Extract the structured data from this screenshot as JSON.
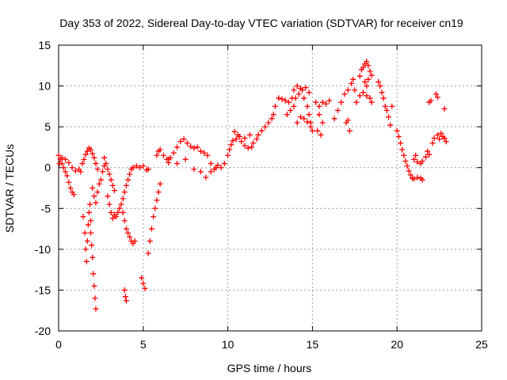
{
  "chart_data": {
    "type": "scatter",
    "title": "Day 353 of 2022, Sidereal Day-to-day VTEC variation (SDTVAR) for receiver cn19",
    "xlabel": "GPS time / hours",
    "ylabel": "SDTVAR / TECUs",
    "xlim": [
      0,
      25
    ],
    "ylim": [
      -20,
      15
    ],
    "xticks": [
      0,
      5,
      10,
      15,
      20,
      25
    ],
    "yticks": [
      -20,
      -15,
      -10,
      -5,
      0,
      5,
      10,
      15
    ],
    "grid": true,
    "marker": "+",
    "series": [
      {
        "name": "SDTVAR",
        "color": "#ff0000",
        "points": [
          [
            0.0,
            1.5
          ],
          [
            0.1,
            1.0
          ],
          [
            0.2,
            0.5
          ],
          [
            0.3,
            0.0
          ],
          [
            0.4,
            -0.5
          ],
          [
            0.5,
            -1.0
          ],
          [
            0.6,
            -1.8
          ],
          [
            0.7,
            -2.5
          ],
          [
            0.8,
            -3.0
          ],
          [
            0.9,
            -3.3
          ],
          [
            0.05,
            0.5
          ],
          [
            0.2,
            1.2
          ],
          [
            0.4,
            1.0
          ],
          [
            0.6,
            0.6
          ],
          [
            0.8,
            0.0
          ],
          [
            1.0,
            -0.4
          ],
          [
            1.2,
            -0.2
          ],
          [
            1.3,
            -0.5
          ],
          [
            1.4,
            0.5
          ],
          [
            1.5,
            1.0
          ],
          [
            1.6,
            1.6
          ],
          [
            1.7,
            2.0
          ],
          [
            1.8,
            2.4
          ],
          [
            1.9,
            2.2
          ],
          [
            2.0,
            1.7
          ],
          [
            2.1,
            1.2
          ],
          [
            2.2,
            0.5
          ],
          [
            2.3,
            -0.2
          ],
          [
            1.45,
            -6.0
          ],
          [
            1.55,
            -8.0
          ],
          [
            1.6,
            -10.0
          ],
          [
            1.65,
            -11.5
          ],
          [
            1.7,
            -9.0
          ],
          [
            1.75,
            -7.0
          ],
          [
            1.8,
            -5.5
          ],
          [
            1.85,
            -4.5
          ],
          [
            1.9,
            -6.5
          ],
          [
            1.9,
            -8.0
          ],
          [
            1.95,
            -9.5
          ],
          [
            2.0,
            -11.0
          ],
          [
            2.05,
            -13.0
          ],
          [
            2.1,
            -14.5
          ],
          [
            2.15,
            -16.0
          ],
          [
            2.2,
            -17.3
          ],
          [
            2.0,
            -2.5
          ],
          [
            2.1,
            -3.5
          ],
          [
            2.2,
            -4.3
          ],
          [
            2.3,
            -3.0
          ],
          [
            2.4,
            -2.0
          ],
          [
            2.5,
            -1.5
          ],
          [
            2.6,
            -0.5
          ],
          [
            2.7,
            0.2
          ],
          [
            2.7,
            1.2
          ],
          [
            2.8,
            0.5
          ],
          [
            2.9,
            -0.2
          ],
          [
            3.0,
            -0.8
          ],
          [
            3.1,
            -1.5
          ],
          [
            3.2,
            -2.2
          ],
          [
            3.3,
            -2.8
          ],
          [
            2.9,
            -3.5
          ],
          [
            3.0,
            -4.5
          ],
          [
            3.1,
            -5.5
          ],
          [
            3.2,
            -6.2
          ],
          [
            3.3,
            -5.8
          ],
          [
            3.4,
            -6.0
          ],
          [
            3.5,
            -5.5
          ],
          [
            3.6,
            -5.0
          ],
          [
            3.7,
            -4.5
          ],
          [
            3.8,
            -3.8
          ],
          [
            3.9,
            -3.0
          ],
          [
            4.0,
            -2.2
          ],
          [
            4.1,
            -1.5
          ],
          [
            4.2,
            -0.8
          ],
          [
            4.3,
            -0.2
          ],
          [
            4.4,
            0.0
          ],
          [
            3.8,
            -5.5
          ],
          [
            3.9,
            -6.5
          ],
          [
            4.0,
            -7.5
          ],
          [
            4.1,
            -8.0
          ],
          [
            4.2,
            -8.5
          ],
          [
            4.3,
            -9.0
          ],
          [
            4.4,
            -9.3
          ],
          [
            4.5,
            -9.0
          ],
          [
            3.9,
            -15.0
          ],
          [
            3.95,
            -15.8
          ],
          [
            4.0,
            -16.3
          ],
          [
            4.6,
            0.2
          ],
          [
            4.8,
            0.0
          ],
          [
            5.0,
            0.2
          ],
          [
            5.2,
            -0.3
          ],
          [
            5.3,
            -0.2
          ],
          [
            4.9,
            -13.5
          ],
          [
            5.0,
            -14.2
          ],
          [
            5.1,
            -14.8
          ],
          [
            5.3,
            -10.5
          ],
          [
            5.4,
            -9.0
          ],
          [
            5.5,
            -7.5
          ],
          [
            5.6,
            -6.0
          ],
          [
            5.7,
            -5.0
          ],
          [
            5.8,
            -4.0
          ],
          [
            5.9,
            -3.0
          ],
          [
            6.0,
            -2.0
          ],
          [
            5.8,
            1.5
          ],
          [
            5.9,
            2.0
          ],
          [
            6.0,
            2.2
          ],
          [
            6.2,
            1.5
          ],
          [
            6.4,
            1.0
          ],
          [
            6.5,
            0.6
          ],
          [
            6.5,
            1.0
          ],
          [
            6.6,
            1.2
          ],
          [
            6.8,
            1.8
          ],
          [
            7.0,
            2.5
          ],
          [
            7.2,
            3.2
          ],
          [
            7.4,
            3.5
          ],
          [
            7.6,
            3.0
          ],
          [
            7.8,
            2.6
          ],
          [
            8.0,
            2.4
          ],
          [
            8.2,
            2.5
          ],
          [
            8.4,
            2.0
          ],
          [
            8.6,
            1.8
          ],
          [
            8.8,
            1.5
          ],
          [
            9.0,
            0.5
          ],
          [
            9.2,
            -0.2
          ],
          [
            9.4,
            0.3
          ],
          [
            9.6,
            0.0
          ],
          [
            9.8,
            0.5
          ],
          [
            7.0,
            0.5
          ],
          [
            7.5,
            1.0
          ],
          [
            8.0,
            -0.2
          ],
          [
            8.4,
            -0.5
          ],
          [
            8.7,
            -1.2
          ],
          [
            9.0,
            -0.5
          ],
          [
            9.3,
            0.0
          ],
          [
            10.0,
            1.5
          ],
          [
            10.1,
            2.2
          ],
          [
            10.2,
            2.8
          ],
          [
            10.3,
            3.3
          ],
          [
            10.5,
            3.5
          ],
          [
            10.7,
            3.8
          ],
          [
            11.0,
            3.6
          ],
          [
            11.3,
            4.0
          ],
          [
            10.4,
            4.4
          ],
          [
            10.6,
            4.0
          ],
          [
            10.8,
            3.2
          ],
          [
            11.0,
            2.7
          ],
          [
            11.2,
            2.4
          ],
          [
            11.4,
            2.5
          ],
          [
            11.5,
            3.0
          ],
          [
            11.7,
            3.5
          ],
          [
            11.8,
            4.0
          ],
          [
            12.0,
            4.5
          ],
          [
            12.2,
            5.0
          ],
          [
            12.4,
            5.5
          ],
          [
            12.6,
            6.0
          ],
          [
            12.7,
            6.5
          ],
          [
            12.8,
            7.5
          ],
          [
            13.0,
            8.5
          ],
          [
            13.2,
            8.4
          ],
          [
            13.4,
            8.2
          ],
          [
            13.6,
            8.0
          ],
          [
            13.8,
            8.5
          ],
          [
            13.5,
            6.5
          ],
          [
            13.7,
            7.0
          ],
          [
            13.9,
            7.5
          ],
          [
            14.0,
            8.5
          ],
          [
            14.2,
            9.0
          ],
          [
            14.4,
            9.5
          ],
          [
            14.6,
            9.8
          ],
          [
            14.8,
            9.2
          ],
          [
            13.9,
            9.5
          ],
          [
            14.1,
            10.0
          ],
          [
            14.3,
            9.7
          ],
          [
            14.5,
            8.5
          ],
          [
            14.7,
            7.5
          ],
          [
            14.8,
            6.5
          ],
          [
            14.9,
            5.5
          ],
          [
            15.0,
            4.5
          ],
          [
            14.1,
            5.5
          ],
          [
            14.3,
            6.2
          ],
          [
            14.5,
            6.0
          ],
          [
            14.7,
            5.6
          ],
          [
            14.9,
            5.0
          ],
          [
            15.2,
            8.0
          ],
          [
            15.4,
            7.5
          ],
          [
            15.6,
            8.0
          ],
          [
            15.8,
            7.8
          ],
          [
            16.0,
            8.2
          ],
          [
            15.4,
            6.5
          ],
          [
            15.6,
            5.5
          ],
          [
            15.3,
            4.5
          ],
          [
            15.5,
            4.0
          ],
          [
            16.3,
            6.0
          ],
          [
            16.5,
            7.0
          ],
          [
            16.7,
            8.0
          ],
          [
            16.9,
            9.0
          ],
          [
            17.1,
            9.5
          ],
          [
            17.3,
            10.3
          ],
          [
            17.4,
            10.8
          ],
          [
            17.5,
            9.5
          ],
          [
            17.0,
            5.5
          ],
          [
            17.1,
            5.8
          ],
          [
            17.2,
            4.5
          ],
          [
            17.6,
            8.0
          ],
          [
            17.8,
            8.8
          ],
          [
            18.0,
            9.2
          ],
          [
            18.2,
            8.8
          ],
          [
            18.4,
            8.5
          ],
          [
            18.5,
            8.0
          ],
          [
            17.8,
            11.2
          ],
          [
            17.9,
            12.0
          ],
          [
            18.0,
            12.3
          ],
          [
            18.1,
            12.7
          ],
          [
            18.2,
            13.0
          ],
          [
            18.3,
            12.5
          ],
          [
            18.4,
            11.8
          ],
          [
            18.5,
            11.3
          ],
          [
            18.1,
            10.5
          ],
          [
            18.2,
            10.0
          ],
          [
            18.3,
            10.8
          ],
          [
            18.9,
            10.5
          ],
          [
            19.0,
            10.0
          ],
          [
            19.1,
            9.2
          ],
          [
            19.2,
            8.5
          ],
          [
            19.3,
            7.5
          ],
          [
            19.4,
            7.0
          ],
          [
            19.5,
            6.2
          ],
          [
            19.6,
            5.2
          ],
          [
            19.7,
            7.5
          ],
          [
            20.0,
            4.5
          ],
          [
            20.1,
            3.8
          ],
          [
            20.2,
            3.0
          ],
          [
            20.3,
            2.2
          ],
          [
            20.4,
            1.5
          ],
          [
            20.5,
            0.8
          ],
          [
            20.6,
            0.2
          ],
          [
            20.7,
            -0.4
          ],
          [
            20.8,
            -0.9
          ],
          [
            20.9,
            -1.3
          ],
          [
            21.0,
            -1.4
          ],
          [
            21.2,
            -1.2
          ],
          [
            21.4,
            -1.3
          ],
          [
            21.5,
            -1.5
          ],
          [
            21.0,
            1.0
          ],
          [
            21.1,
            1.5
          ],
          [
            21.2,
            0.7
          ],
          [
            21.4,
            0.5
          ],
          [
            21.5,
            0.8
          ],
          [
            21.7,
            1.3
          ],
          [
            21.8,
            2.0
          ],
          [
            21.9,
            1.6
          ],
          [
            21.9,
            8.0
          ],
          [
            22.0,
            8.2
          ],
          [
            22.3,
            9.0
          ],
          [
            22.4,
            8.6
          ],
          [
            22.8,
            7.2
          ],
          [
            22.1,
            3.0
          ],
          [
            22.2,
            3.6
          ],
          [
            22.4,
            4.0
          ],
          [
            22.5,
            3.5
          ],
          [
            22.6,
            4.2
          ],
          [
            22.7,
            3.8
          ],
          [
            22.8,
            3.6
          ],
          [
            22.9,
            3.2
          ]
        ]
      }
    ]
  }
}
